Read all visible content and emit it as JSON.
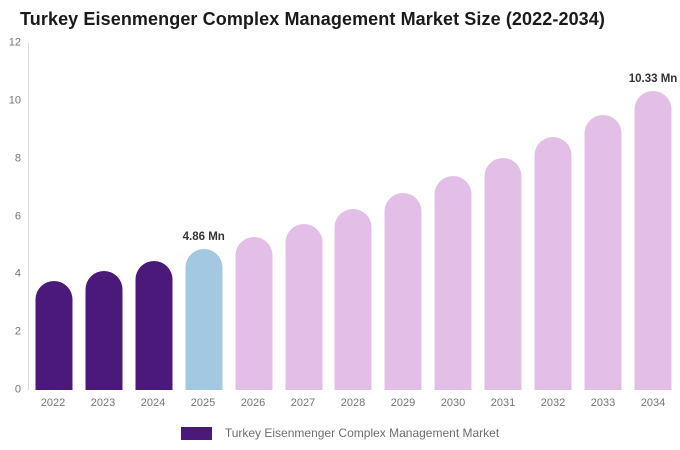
{
  "title": "Turkey Eisenmenger Complex Management Market Size (2022-2034)",
  "legend": {
    "label": "Turkey Eisenmenger Complex Management Market",
    "swatch_color": "#4B1979"
  },
  "colors": {
    "historical": "#4B1979",
    "base_year": "#A3C9E2",
    "forecast": "#E3BFE8",
    "title_text": "#1a1a1a",
    "axis_text": "#757575",
    "annotation_text": "#333333",
    "axis_line": "#d9d9d9",
    "background": "#ffffff"
  },
  "chart_data": {
    "type": "bar",
    "title": "Turkey Eisenmenger Complex Management Market Size (2022-2034)",
    "unit": "Mn",
    "categories": [
      "2022",
      "2023",
      "2024",
      "2025",
      "2026",
      "2027",
      "2028",
      "2029",
      "2030",
      "2031",
      "2032",
      "2033",
      "2034"
    ],
    "values": [
      3.78,
      4.11,
      4.47,
      4.86,
      5.28,
      5.75,
      6.25,
      6.8,
      7.39,
      8.04,
      8.74,
      9.5,
      10.33
    ],
    "segments": [
      "historical",
      "historical",
      "historical",
      "base_year",
      "forecast",
      "forecast",
      "forecast",
      "forecast",
      "forecast",
      "forecast",
      "forecast",
      "forecast",
      "forecast"
    ],
    "annotations": [
      {
        "category": "2025",
        "text": "4.86 Mn"
      },
      {
        "category": "2034",
        "text": "10.33 Mn"
      }
    ],
    "xlabel": "",
    "ylabel": "",
    "ylim": [
      0,
      12
    ],
    "yticks": [
      0,
      2,
      4,
      6,
      8,
      10,
      12
    ],
    "grid": false,
    "legend_position": "bottom",
    "series_name": "Turkey Eisenmenger Complex Management Market"
  }
}
